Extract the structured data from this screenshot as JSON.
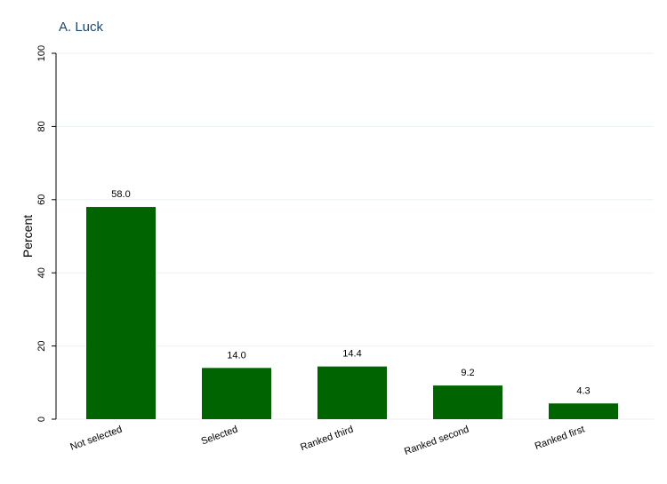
{
  "chart_data": {
    "type": "bar",
    "title": "A. Luck",
    "y_label": "Percent",
    "categories": [
      "Not selected",
      "Selected",
      "Ranked third",
      "Ranked second",
      "Ranked first"
    ],
    "values": [
      58.0,
      14.0,
      14.4,
      9.2,
      4.3
    ],
    "value_labels": [
      "58.0",
      "14.0",
      "14.4",
      "9.2",
      "4.3"
    ],
    "color": "#006400",
    "ylim": [
      0,
      100
    ],
    "yticks": [
      0,
      20,
      40,
      60,
      80,
      100
    ],
    "grid": true
  }
}
